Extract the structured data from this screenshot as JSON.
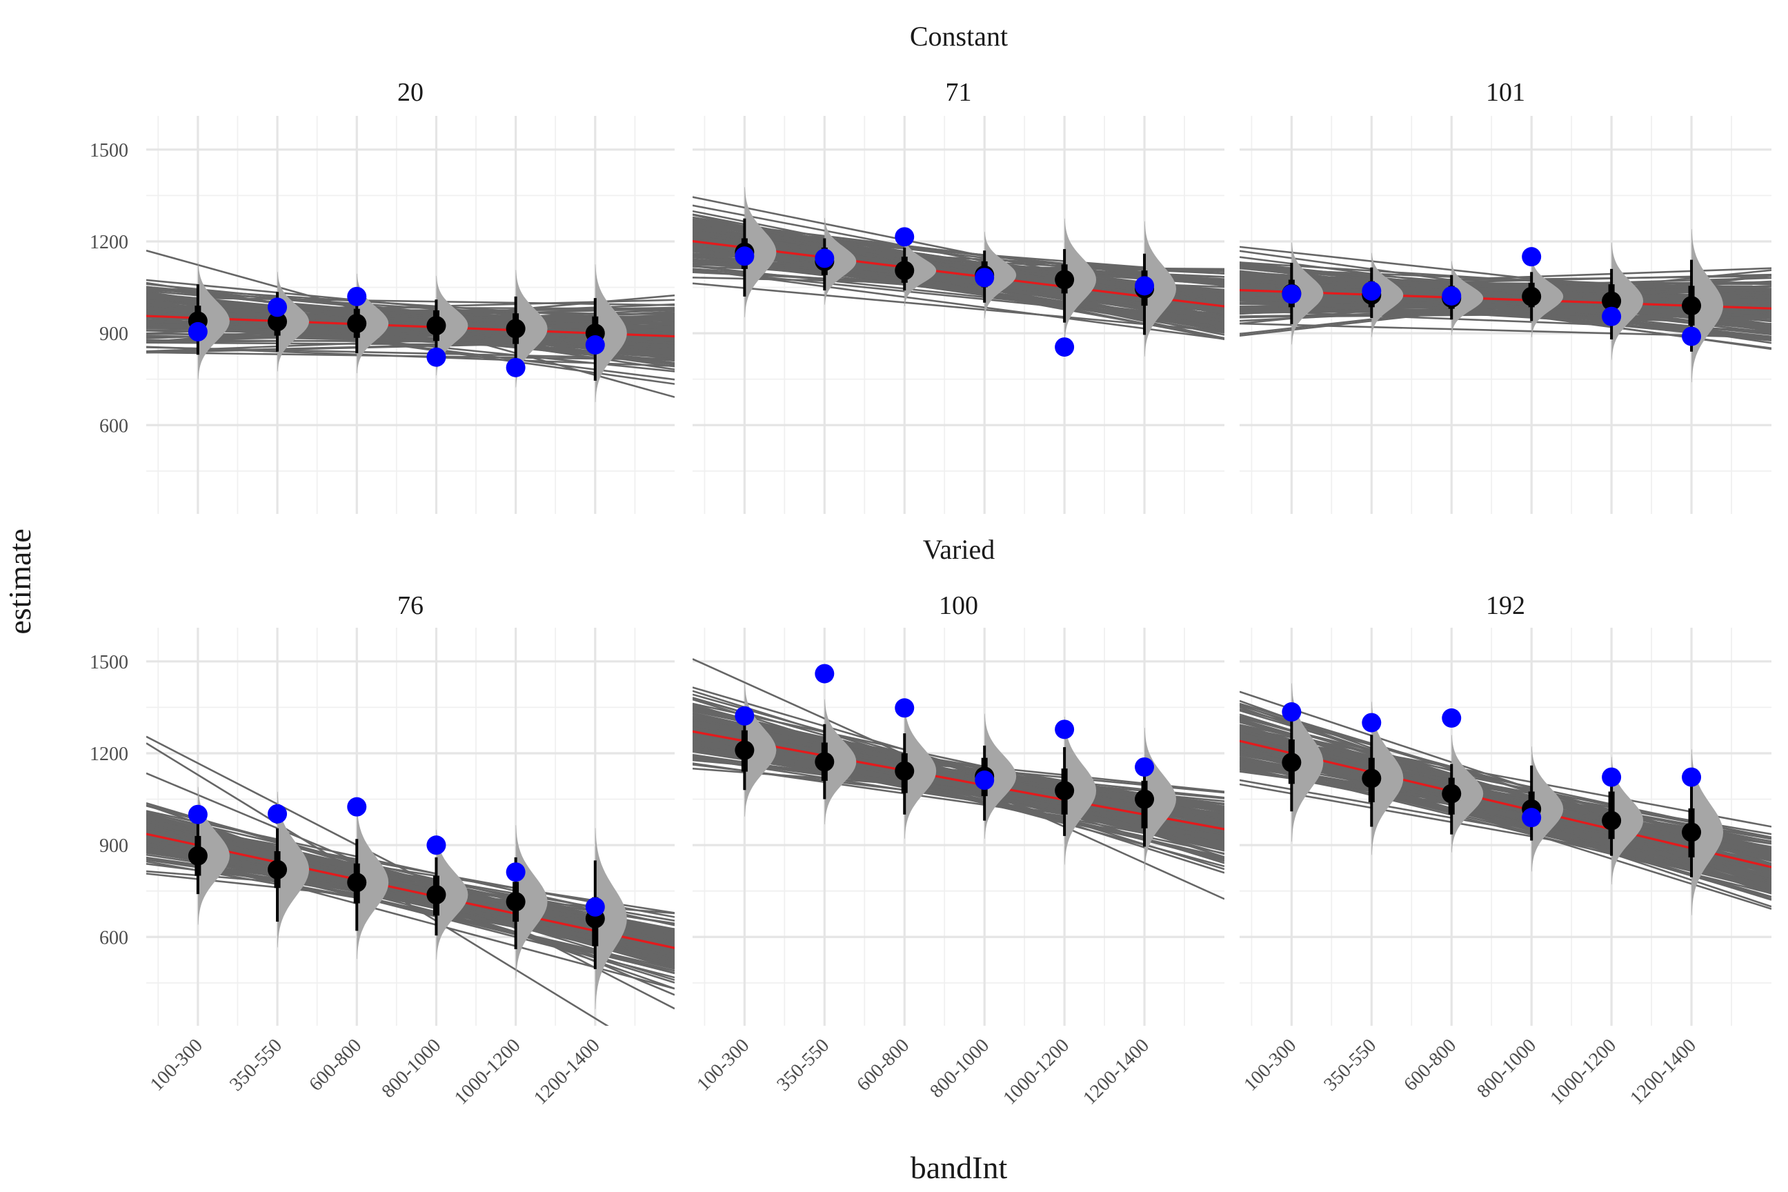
{
  "chart_data": {
    "type": "scatter",
    "xlabel": "bandInt",
    "ylabel": "estimate",
    "categories": [
      "100-300",
      "350-550",
      "600-800",
      "800-1000",
      "1000-1200",
      "1200-1400"
    ],
    "yticks": [
      600,
      900,
      1200,
      1500
    ],
    "ylim": [
      310,
      1610
    ],
    "grid": true,
    "legend": "none",
    "colors": {
      "band": "#666666",
      "fit_line": "#e41a1c",
      "observed": "#0000ff",
      "posterior_point": "#000000",
      "density": "#a6a6a6"
    },
    "groups": [
      {
        "label": "Constant",
        "panels": [
          {
            "id": "20",
            "observed": [
              905,
              985,
              1020,
              822,
              788,
              862
            ],
            "posterior": [
              940,
              938,
              932,
              925,
              915,
              900
            ],
            "ci_inner": [
              [
                890,
                990
              ],
              [
                892,
                985
              ],
              [
                885,
                980
              ],
              [
                875,
                975
              ],
              [
                865,
                965
              ],
              [
                840,
                955
              ]
            ],
            "ci_outer": [
              [
                830,
                1060
              ],
              [
                840,
                1035
              ],
              [
                835,
                1030
              ],
              [
                815,
                1010
              ],
              [
                790,
                1020
              ],
              [
                745,
                1015
              ]
            ],
            "fit": [
              950,
              900
            ]
          },
          {
            "id": "71",
            "observed": [
              1152,
              1145,
              1215,
              1082,
              855,
              1055
            ],
            "posterior": [
              1165,
              1135,
              1105,
              1090,
              1075,
              1045
            ],
            "ci_inner": [
              [
                1110,
                1210
              ],
              [
                1090,
                1180
              ],
              [
                1065,
                1150
              ],
              [
                1050,
                1135
              ],
              [
                1030,
                1125
              ],
              [
                990,
                1105
              ]
            ],
            "ci_outer": [
              [
                1020,
                1275
              ],
              [
                1040,
                1210
              ],
              [
                1040,
                1180
              ],
              [
                1000,
                1170
              ],
              [
                935,
                1175
              ],
              [
                895,
                1160
              ]
            ],
            "fit": [
              1180,
              1020
            ]
          },
          {
            "id": "101",
            "observed": [
              1028,
              1038,
              1022,
              1150,
              955,
              890
            ],
            "posterior": [
              1030,
              1025,
              1015,
              1020,
              1005,
              990
            ],
            "ci_inner": [
              [
                985,
                1075
              ],
              [
                985,
                1070
              ],
              [
                980,
                1055
              ],
              [
                985,
                1065
              ],
              [
                960,
                1060
              ],
              [
                925,
                1055
              ]
            ],
            "ci_outer": [
              [
                930,
                1130
              ],
              [
                950,
                1115
              ],
              [
                945,
                1090
              ],
              [
                940,
                1100
              ],
              [
                880,
                1110
              ],
              [
                840,
                1140
              ]
            ],
            "fit": [
              1035,
              990
            ]
          }
        ]
      },
      {
        "label": "Varied",
        "panels": [
          {
            "id": "76",
            "observed": [
              1000,
              1002,
              1025,
              900,
              812,
              698
            ],
            "posterior": [
              865,
              820,
              778,
              738,
              715,
              660
            ],
            "ci_inner": [
              [
                800,
                930
              ],
              [
                760,
                880
              ],
              [
                710,
                840
              ],
              [
                670,
                800
              ],
              [
                650,
                780
              ],
              [
                570,
                730
              ]
            ],
            "ci_outer": [
              [
                740,
                1010
              ],
              [
                650,
                955
              ],
              [
                620,
                920
              ],
              [
                605,
                860
              ],
              [
                560,
                860
              ],
              [
                495,
                850
              ]
            ],
            "fit": [
              900,
              620
            ]
          },
          {
            "id": "100",
            "observed": [
              1322,
              1460,
              1348,
              1112,
              1278,
              1155
            ],
            "posterior": [
              1210,
              1172,
              1142,
              1125,
              1078,
              1050
            ],
            "ci_inner": [
              [
                1140,
                1275
              ],
              [
                1110,
                1235
              ],
              [
                1070,
                1200
              ],
              [
                1060,
                1185
              ],
              [
                1000,
                1150
              ],
              [
                955,
                1110
              ]
            ],
            "ci_outer": [
              [
                1080,
                1340
              ],
              [
                1050,
                1295
              ],
              [
                1000,
                1265
              ],
              [
                980,
                1225
              ],
              [
                930,
                1220
              ],
              [
                895,
                1175
              ]
            ],
            "fit": [
              1240,
              1000
            ]
          },
          {
            "id": "192",
            "observed": [
              1335,
              1300,
              1315,
              990,
              1122,
              1122
            ],
            "posterior": [
              1170,
              1118,
              1068,
              1018,
              980,
              942
            ],
            "ci_inner": [
              [
                1100,
                1245
              ],
              [
                1040,
                1185
              ],
              [
                1000,
                1120
              ],
              [
                960,
                1075
              ],
              [
                920,
                1075
              ],
              [
                860,
                1020
              ]
            ],
            "ci_outer": [
              [
                1010,
                1320
              ],
              [
                960,
                1260
              ],
              [
                935,
                1165
              ],
              [
                915,
                1160
              ],
              [
                865,
                1115
              ],
              [
                795,
                1120
              ]
            ],
            "fit": [
              1200,
              890
            ]
          }
        ]
      }
    ]
  }
}
